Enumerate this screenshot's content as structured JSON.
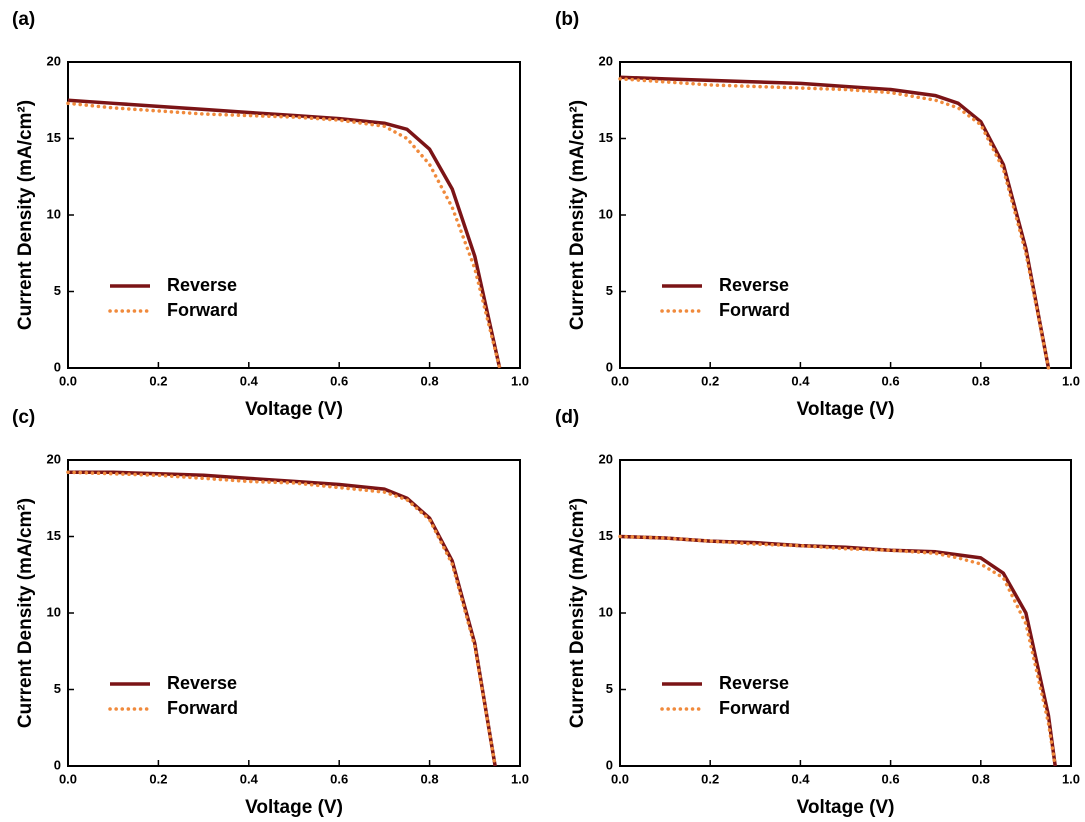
{
  "chart_data": [
    {
      "type": "line",
      "title": "(a)",
      "xlabel": "Voltage (V)",
      "ylabel": "Current Density (mA/cm²)",
      "x": [
        0,
        0.1,
        0.2,
        0.3,
        0.4,
        0.5,
        0.6,
        0.7,
        0.75,
        0.8,
        0.85,
        0.9,
        0.955
      ],
      "series": [
        {
          "name": "Reverse",
          "color": "#7b1416",
          "style": "solid",
          "values": [
            17.5,
            17.3,
            17.1,
            16.9,
            16.7,
            16.5,
            16.3,
            16.0,
            15.6,
            14.3,
            11.7,
            7.3,
            0
          ]
        },
        {
          "name": "Forward",
          "color": "#f08a3c",
          "style": "dotted",
          "values": [
            17.3,
            17.0,
            16.8,
            16.6,
            16.5,
            16.4,
            16.2,
            15.8,
            15.0,
            13.3,
            10.5,
            6.5,
            0
          ]
        }
      ],
      "xlim": [
        0,
        1
      ],
      "ylim": [
        0,
        20
      ],
      "xticks": [
        {
          "value": 0,
          "label": "0.0"
        },
        0.2,
        0.4,
        0.6,
        0.8,
        {
          "value": 1,
          "label": "1.0"
        }
      ],
      "yticks": [
        0,
        5,
        10,
        15,
        20
      ],
      "legend": "lower left"
    },
    {
      "type": "line",
      "title": "(b)",
      "xlabel": "Voltage (V)",
      "ylabel": "Current Density (mA/cm²)",
      "x": [
        0,
        0.1,
        0.2,
        0.3,
        0.4,
        0.5,
        0.6,
        0.7,
        0.75,
        0.8,
        0.85,
        0.9,
        0.95
      ],
      "series": [
        {
          "name": "Reverse",
          "color": "#7b1416",
          "style": "solid",
          "values": [
            19.0,
            18.9,
            18.8,
            18.7,
            18.6,
            18.4,
            18.2,
            17.8,
            17.3,
            16.1,
            13.3,
            7.8,
            0
          ]
        },
        {
          "name": "Forward",
          "color": "#f08a3c",
          "style": "dotted",
          "values": [
            18.9,
            18.7,
            18.5,
            18.4,
            18.3,
            18.2,
            18.0,
            17.5,
            17.0,
            15.9,
            13.0,
            7.5,
            0
          ]
        }
      ],
      "xlim": [
        0,
        1
      ],
      "ylim": [
        0,
        20
      ],
      "xticks": [
        {
          "value": 0,
          "label": "0.0"
        },
        0.2,
        0.4,
        0.6,
        0.8,
        {
          "value": 1,
          "label": "1.0"
        }
      ],
      "yticks": [
        0,
        5,
        10,
        15,
        20
      ],
      "legend": "lower left"
    },
    {
      "type": "line",
      "title": "(c)",
      "xlabel": "Voltage (V)",
      "ylabel": "Current Density (mA/cm²)",
      "x": [
        0,
        0.1,
        0.2,
        0.3,
        0.4,
        0.5,
        0.6,
        0.7,
        0.75,
        0.8,
        0.85,
        0.9,
        0.945
      ],
      "series": [
        {
          "name": "Reverse",
          "color": "#7b1416",
          "style": "solid",
          "values": [
            19.2,
            19.2,
            19.1,
            19.0,
            18.8,
            18.6,
            18.4,
            18.1,
            17.5,
            16.2,
            13.4,
            8.0,
            0
          ]
        },
        {
          "name": "Forward",
          "color": "#f08a3c",
          "style": "dotted",
          "values": [
            19.2,
            19.1,
            19.0,
            18.8,
            18.6,
            18.5,
            18.2,
            17.9,
            17.4,
            16.1,
            13.2,
            7.8,
            0
          ]
        }
      ],
      "xlim": [
        0,
        1
      ],
      "ylim": [
        0,
        20
      ],
      "xticks": [
        {
          "value": 0,
          "label": "0.0"
        },
        0.2,
        0.4,
        0.6,
        0.8,
        {
          "value": 1,
          "label": "1.0"
        }
      ],
      "yticks": [
        0,
        5,
        10,
        15,
        20
      ],
      "legend": "lower left"
    },
    {
      "type": "line",
      "title": "(d)",
      "xlabel": "Voltage (V)",
      "ylabel": "Current Density (mA/cm²)",
      "x": [
        0,
        0.1,
        0.2,
        0.3,
        0.4,
        0.5,
        0.6,
        0.7,
        0.75,
        0.8,
        0.85,
        0.9,
        0.95,
        0.965
      ],
      "series": [
        {
          "name": "Reverse",
          "color": "#7b1416",
          "style": "solid",
          "values": [
            15.0,
            14.9,
            14.7,
            14.6,
            14.4,
            14.3,
            14.1,
            14.0,
            13.8,
            13.6,
            12.6,
            10.0,
            3.3,
            0
          ]
        },
        {
          "name": "Forward",
          "color": "#f08a3c",
          "style": "dotted",
          "values": [
            15.0,
            14.9,
            14.7,
            14.5,
            14.4,
            14.2,
            14.1,
            13.9,
            13.6,
            13.2,
            12.3,
            9.3,
            2.8,
            0
          ]
        }
      ],
      "xlim": [
        0,
        1
      ],
      "ylim": [
        0,
        20
      ],
      "xticks": [
        {
          "value": 0,
          "label": "0.0"
        },
        0.2,
        0.4,
        0.6,
        0.8,
        {
          "value": 1,
          "label": "1.0"
        }
      ],
      "yticks": [
        0,
        5,
        10,
        15,
        20
      ],
      "legend": "lower left"
    }
  ]
}
